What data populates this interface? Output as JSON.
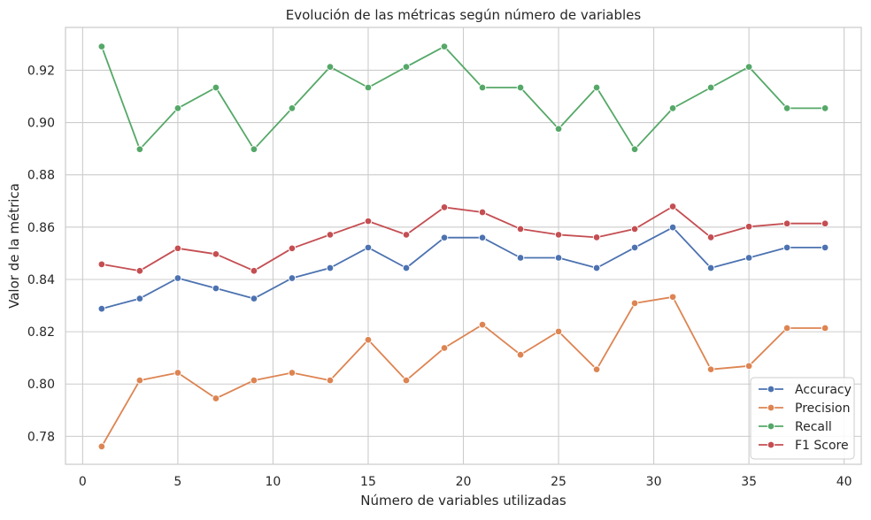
{
  "chart_data": {
    "type": "line",
    "title": "Evolución de las métricas según número de variables",
    "xlabel": "Número de variables utilizadas",
    "ylabel": "Valor de la métrica",
    "xlim": [
      -0.9,
      40.9
    ],
    "ylim": [
      0.7693,
      0.9364
    ],
    "xticks": [
      0,
      5,
      10,
      15,
      20,
      25,
      30,
      35,
      40
    ],
    "yticks": [
      0.78,
      0.8,
      0.82,
      0.84,
      0.86,
      0.88,
      0.9,
      0.92
    ],
    "xtick_labels": [
      "0",
      "5",
      "10",
      "15",
      "20",
      "25",
      "30",
      "35",
      "40"
    ],
    "ytick_labels": [
      "0.78",
      "0.80",
      "0.82",
      "0.84",
      "0.86",
      "0.88",
      "0.90",
      "0.92"
    ],
    "grid": true,
    "legend_position": "lower-right",
    "x": [
      1,
      3,
      5,
      7,
      9,
      11,
      13,
      15,
      17,
      19,
      21,
      23,
      25,
      27,
      29,
      31,
      33,
      35,
      37,
      39
    ],
    "series": [
      {
        "name": "Accuracy",
        "color": "#4c72b0",
        "values": [
          0.8288,
          0.8327,
          0.8405,
          0.8366,
          0.8327,
          0.8405,
          0.8444,
          0.8522,
          0.8444,
          0.856,
          0.856,
          0.8483,
          0.8483,
          0.8444,
          0.8522,
          0.8599,
          0.8444,
          0.8483,
          0.8522,
          0.8522
        ]
      },
      {
        "name": "Precision",
        "color": "#dd8452",
        "values": [
          0.7761,
          0.8014,
          0.8043,
          0.7945,
          0.8014,
          0.8043,
          0.8014,
          0.8169,
          0.8014,
          0.8138,
          0.8227,
          0.8112,
          0.8201,
          0.8056,
          0.8309,
          0.8333,
          0.8056,
          0.8069,
          0.8214,
          0.8214
        ]
      },
      {
        "name": "Recall",
        "color": "#55a868",
        "values": [
          0.9291,
          0.8898,
          0.9055,
          0.9134,
          0.8898,
          0.9055,
          0.9213,
          0.9134,
          0.9213,
          0.9291,
          0.9134,
          0.9134,
          0.8976,
          0.9134,
          0.8898,
          0.9055,
          0.9134,
          0.9213,
          0.9055,
          0.9055
        ]
      },
      {
        "name": "F1 Score",
        "color": "#c44e52",
        "values": [
          0.8458,
          0.8433,
          0.8519,
          0.8497,
          0.8433,
          0.8519,
          0.8571,
          0.8623,
          0.8571,
          0.8676,
          0.8657,
          0.8593,
          0.8571,
          0.8561,
          0.8593,
          0.8679,
          0.8561,
          0.8602,
          0.8614,
          0.8614
        ]
      }
    ]
  }
}
